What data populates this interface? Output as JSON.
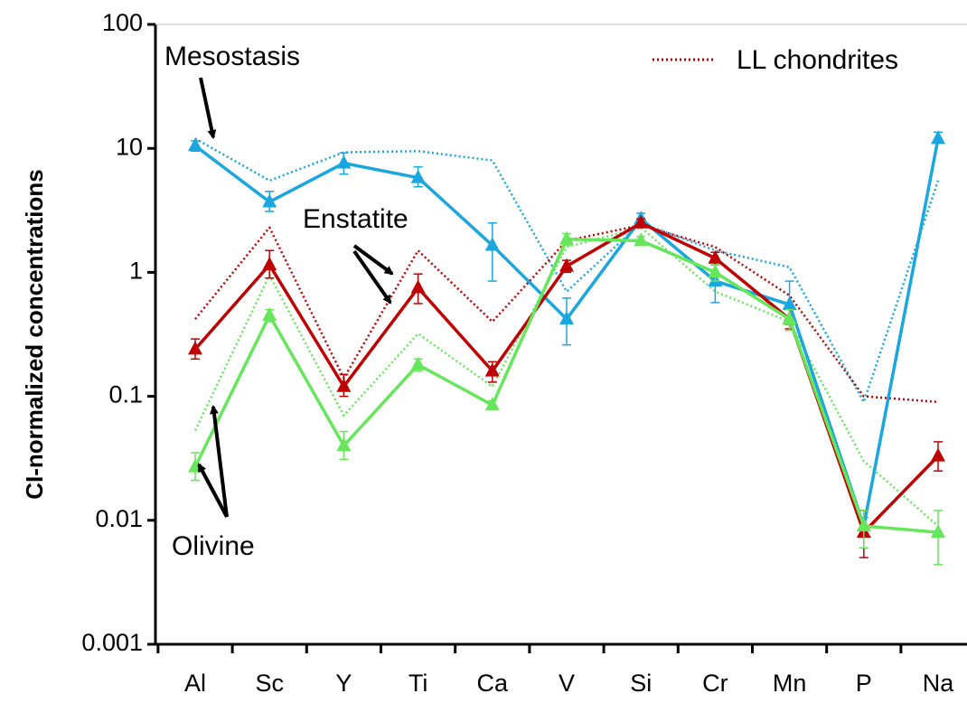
{
  "chart_data": {
    "type": "line",
    "title": "",
    "xlabel": "",
    "ylabel": "CI-normalized concentrations",
    "yscale": "log",
    "ylim": [
      0.001,
      100
    ],
    "yticks": [
      "0.001",
      "0.01",
      "0.1",
      "1",
      "10",
      "100"
    ],
    "grid": false,
    "categories": [
      "Al",
      "Sc",
      "Y",
      "Ti",
      "Ca",
      "V",
      "Si",
      "Cr",
      "Mn",
      "P",
      "Na"
    ],
    "series": [
      {
        "name": "Mesostasis",
        "color": "#1aa6df",
        "style": "solid",
        "marker": "triangle",
        "values": [
          10.5,
          3.7,
          7.6,
          5.8,
          1.65,
          0.42,
          2.7,
          0.85,
          0.55,
          0.009,
          12
        ],
        "err_low": [
          9.5,
          3.1,
          6.2,
          4.9,
          0.85,
          0.26,
          2.4,
          0.57,
          0.38,
          0.0075,
          11
        ],
        "err_high": [
          11.5,
          4.5,
          9.2,
          7.1,
          2.5,
          0.62,
          3.0,
          1.2,
          0.85,
          0.0105,
          13.5
        ]
      },
      {
        "name": "Enstatite",
        "color": "#c00000",
        "style": "solid",
        "marker": "triangle",
        "values": [
          0.24,
          1.15,
          0.12,
          0.75,
          0.16,
          1.12,
          2.5,
          1.3,
          0.42,
          0.008,
          0.033
        ],
        "err_low": [
          0.2,
          0.9,
          0.1,
          0.56,
          0.13,
          1.0,
          2.3,
          1.15,
          0.35,
          0.005,
          0.025
        ],
        "err_high": [
          0.29,
          1.5,
          0.15,
          0.97,
          0.19,
          1.25,
          2.7,
          1.45,
          0.5,
          0.012,
          0.043
        ]
      },
      {
        "name": "Olivine",
        "color": "#66e65a",
        "style": "solid",
        "marker": "triangle",
        "values": [
          0.027,
          0.45,
          0.04,
          0.18,
          0.085,
          1.85,
          1.8,
          1.0,
          0.42,
          0.009,
          0.008
        ],
        "err_low": [
          0.021,
          0.4,
          0.031,
          0.16,
          0.078,
          1.65,
          1.65,
          0.85,
          0.34,
          0.006,
          0.0044
        ],
        "err_high": [
          0.035,
          0.5,
          0.052,
          0.2,
          0.092,
          2.05,
          1.95,
          1.15,
          0.5,
          0.012,
          0.012
        ]
      },
      {
        "name": "LL mesostasis",
        "color": "#1aa6df",
        "style": "dotted",
        "values": [
          12,
          5.5,
          9.3,
          9.5,
          8,
          0.7,
          2.5,
          1.5,
          1.1,
          0.09,
          5.5
        ]
      },
      {
        "name": "LL enstatite",
        "color": "#c00000",
        "style": "dotted",
        "values": [
          0.42,
          2.3,
          0.14,
          1.5,
          0.4,
          1.8,
          2.4,
          1.6,
          0.65,
          0.1,
          0.09
        ]
      },
      {
        "name": "LL olivine",
        "color": "#66e65a",
        "style": "dotted",
        "values": [
          0.053,
          0.95,
          0.07,
          0.32,
          0.12,
          1.6,
          2.3,
          0.7,
          0.4,
          0.03,
          0.009
        ]
      }
    ],
    "legend": {
      "label": "LL chondrites",
      "position": "top-right"
    },
    "annotations": [
      "Mesostasis",
      "Enstatite",
      "Olivine"
    ]
  }
}
